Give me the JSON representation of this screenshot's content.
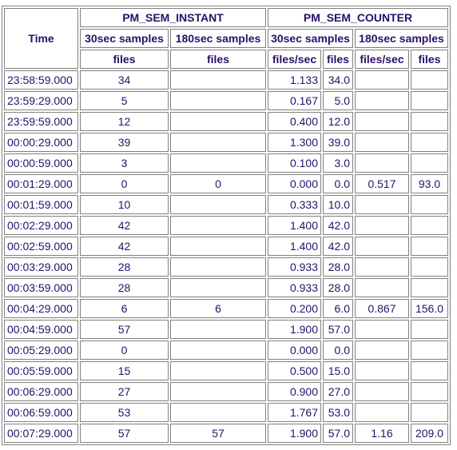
{
  "headers": {
    "time": "Time",
    "group_instant": "PM_SEM_INSTANT",
    "group_counter": "PM_SEM_COUNTER",
    "samples_30": "30sec samples",
    "samples_180": "180sec samples",
    "unit_files": "files",
    "unit_files_per_sec": "files/sec"
  },
  "rows": [
    {
      "time": "23:58:59.000",
      "i30": "34",
      "i180": "",
      "r30": "1.133",
      "c30": "34.0",
      "r180": "",
      "c180": ""
    },
    {
      "time": "23:59:29.000",
      "i30": "5",
      "i180": "",
      "r30": "0.167",
      "c30": "5.0",
      "r180": "",
      "c180": ""
    },
    {
      "time": "23:59:59.000",
      "i30": "12",
      "i180": "",
      "r30": "0.400",
      "c30": "12.0",
      "r180": "",
      "c180": ""
    },
    {
      "time": "00:00:29.000",
      "i30": "39",
      "i180": "",
      "r30": "1.300",
      "c30": "39.0",
      "r180": "",
      "c180": ""
    },
    {
      "time": "00:00:59.000",
      "i30": "3",
      "i180": "",
      "r30": "0.100",
      "c30": "3.0",
      "r180": "",
      "c180": ""
    },
    {
      "time": "00:01:29.000",
      "i30": "0",
      "i180": "0",
      "r30": "0.000",
      "c30": "0.0",
      "r180": "0.517",
      "c180": "93.0"
    },
    {
      "time": "00:01:59.000",
      "i30": "10",
      "i180": "",
      "r30": "0.333",
      "c30": "10.0",
      "r180": "",
      "c180": ""
    },
    {
      "time": "00:02:29.000",
      "i30": "42",
      "i180": "",
      "r30": "1.400",
      "c30": "42.0",
      "r180": "",
      "c180": ""
    },
    {
      "time": "00:02:59.000",
      "i30": "42",
      "i180": "",
      "r30": "1.400",
      "c30": "42.0",
      "r180": "",
      "c180": ""
    },
    {
      "time": "00:03:29.000",
      "i30": "28",
      "i180": "",
      "r30": "0.933",
      "c30": "28.0",
      "r180": "",
      "c180": ""
    },
    {
      "time": "00:03:59.000",
      "i30": "28",
      "i180": "",
      "r30": "0.933",
      "c30": "28.0",
      "r180": "",
      "c180": ""
    },
    {
      "time": "00:04:29.000",
      "i30": "6",
      "i180": "6",
      "r30": "0.200",
      "c30": "6.0",
      "r180": "0.867",
      "c180": "156.0"
    },
    {
      "time": "00:04:59.000",
      "i30": "57",
      "i180": "",
      "r30": "1.900",
      "c30": "57.0",
      "r180": "",
      "c180": ""
    },
    {
      "time": "00:05:29.000",
      "i30": "0",
      "i180": "",
      "r30": "0.000",
      "c30": "0.0",
      "r180": "",
      "c180": ""
    },
    {
      "time": "00:05:59.000",
      "i30": "15",
      "i180": "",
      "r30": "0.500",
      "c30": "15.0",
      "r180": "",
      "c180": ""
    },
    {
      "time": "00:06:29.000",
      "i30": "27",
      "i180": "",
      "r30": "0.900",
      "c30": "27.0",
      "r180": "",
      "c180": ""
    },
    {
      "time": "00:06:59.000",
      "i30": "53",
      "i180": "",
      "r30": "1.767",
      "c30": "53.0",
      "r180": "",
      "c180": ""
    },
    {
      "time": "00:07:29.000",
      "i30": "57",
      "i180": "57",
      "r30": "1.900",
      "c30": "57.0",
      "r180": "1.16",
      "c180": "209.0"
    }
  ]
}
